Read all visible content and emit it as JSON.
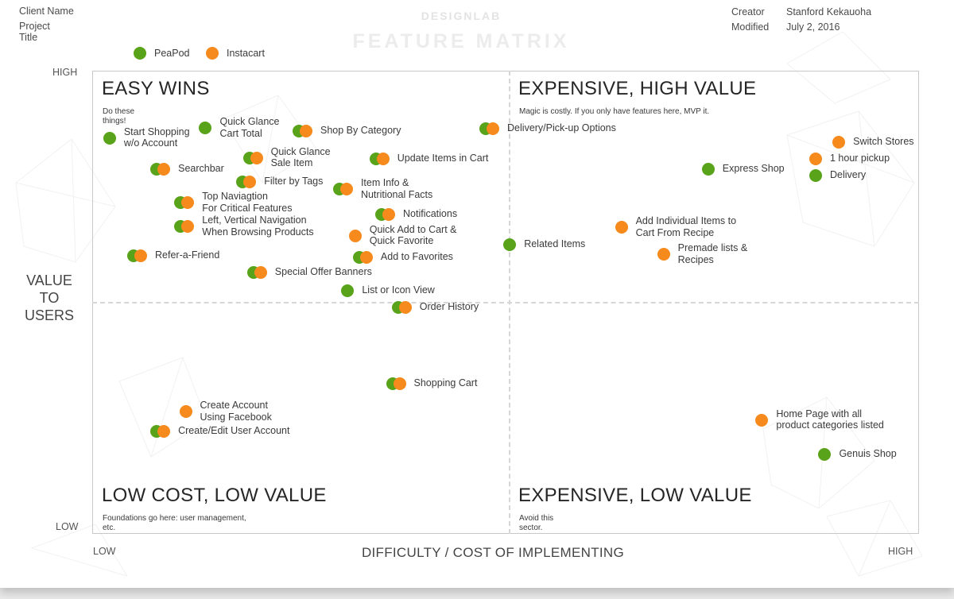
{
  "header": {
    "client_name_label": "Client Name",
    "project_title_label": "Project\nTitle",
    "brand_prefix": "DESIGN",
    "brand_suffix": "LAB",
    "matrix_title": "FEATURE MATRIX",
    "creator_label": "Creator",
    "creator_value": "Stanford Kekauoha",
    "modified_label": "Modified",
    "modified_value": "July 2, 2016"
  },
  "legend": [
    {
      "name": "PeaPod",
      "color": "#58a319"
    },
    {
      "name": "Instacart",
      "color": "#f78a1d"
    }
  ],
  "axes": {
    "y_label": "VALUE\nTO\nUSERS",
    "y_high": "HIGH",
    "y_low": "LOW",
    "x_label": "DIFFICULTY / COST OF IMPLEMENTING",
    "x_low": "LOW",
    "x_high": "HIGH"
  },
  "quadrants": {
    "tl": {
      "title": "EASY WINS",
      "subtitle": "Do these\nthings!"
    },
    "tr": {
      "title": "EXPENSIVE, HIGH VALUE",
      "subtitle": "Magic is costly. If you only have features here, MVP it."
    },
    "bl": {
      "title": "LOW COST, LOW VALUE",
      "subtitle": "Foundations go here: user management,\netc."
    },
    "br": {
      "title": "EXPENSIVE, LOW VALUE",
      "subtitle": "Avoid this\nsector."
    }
  },
  "chart_data": {
    "type": "scatter",
    "xlabel": "DIFFICULTY / COST OF IMPLEMENTING",
    "ylabel": "VALUE TO USERS",
    "x_range_labels": [
      "LOW",
      "HIGH"
    ],
    "y_range_labels": [
      "LOW",
      "HIGH"
    ],
    "legend_position": "top-left",
    "series_names": [
      "PeaPod",
      "Instacart"
    ],
    "features": [
      {
        "label": "Start Shopping\nw/o Account",
        "x": 0.021,
        "y": 0.855,
        "companies": [
          "PeaPod"
        ]
      },
      {
        "label": "Quick Glance\nCart Total",
        "x": 0.137,
        "y": 0.876,
        "companies": [
          "PeaPod"
        ]
      },
      {
        "label": "Shop By Category",
        "x": 0.25,
        "y": 0.87,
        "companies": [
          "PeaPod",
          "Instacart"
        ]
      },
      {
        "label": "Delivery/Pick-up Options",
        "x": 0.476,
        "y": 0.874,
        "companies": [
          "PeaPod",
          "Instacart"
        ]
      },
      {
        "label": "Searchbar",
        "x": 0.078,
        "y": 0.788,
        "companies": [
          "PeaPod",
          "Instacart"
        ]
      },
      {
        "label": "Quick Glance\nSale Item",
        "x": 0.19,
        "y": 0.812,
        "companies": [
          "PeaPod",
          "Instacart"
        ]
      },
      {
        "label": "Update Items in Cart",
        "x": 0.343,
        "y": 0.81,
        "companies": [
          "PeaPod",
          "Instacart"
        ]
      },
      {
        "label": "Filter by Tags",
        "x": 0.182,
        "y": 0.76,
        "companies": [
          "PeaPod",
          "Instacart"
        ]
      },
      {
        "label": "Item Info &\nNutritional Facts",
        "x": 0.299,
        "y": 0.744,
        "companies": [
          "PeaPod",
          "Instacart"
        ]
      },
      {
        "label": "Top Naviagtion\nFor Critical Features",
        "x": 0.107,
        "y": 0.715,
        "companies": [
          "PeaPod",
          "Instacart"
        ]
      },
      {
        "label": "Notifications",
        "x": 0.35,
        "y": 0.69,
        "companies": [
          "PeaPod",
          "Instacart"
        ]
      },
      {
        "label": "Left, Vertical Navigation\nWhen Browsing Products",
        "x": 0.107,
        "y": 0.663,
        "companies": [
          "PeaPod",
          "Instacart"
        ]
      },
      {
        "label": "Quick Add to Cart &\nQuick Favorite",
        "x": 0.318,
        "y": 0.644,
        "companies": [
          "Instacart"
        ]
      },
      {
        "label": "Refer-a-Friend",
        "x": 0.05,
        "y": 0.6,
        "companies": [
          "PeaPod",
          "Instacart"
        ]
      },
      {
        "label": "Add to Favorites",
        "x": 0.323,
        "y": 0.597,
        "companies": [
          "PeaPod",
          "Instacart"
        ]
      },
      {
        "label": "Special Offer Banners",
        "x": 0.195,
        "y": 0.564,
        "companies": [
          "PeaPod",
          "Instacart"
        ]
      },
      {
        "label": "List or Icon View",
        "x": 0.309,
        "y": 0.525,
        "companies": [
          "PeaPod"
        ]
      },
      {
        "label": "Order History",
        "x": 0.37,
        "y": 0.488,
        "companies": [
          "PeaPod",
          "Instacart"
        ]
      },
      {
        "label": "Shopping Cart",
        "x": 0.363,
        "y": 0.325,
        "companies": [
          "PeaPod",
          "Instacart"
        ]
      },
      {
        "label": "Create Account\nUsing Facebook",
        "x": 0.113,
        "y": 0.264,
        "companies": [
          "Instacart"
        ]
      },
      {
        "label": "Create/Edit User Account",
        "x": 0.078,
        "y": 0.222,
        "companies": [
          "PeaPod",
          "Instacart"
        ]
      },
      {
        "label": "Related Items",
        "x": 0.505,
        "y": 0.625,
        "companies": [
          "PeaPod"
        ]
      },
      {
        "label": "Switch Stores",
        "x": 0.903,
        "y": 0.846,
        "companies": [
          "Instacart"
        ]
      },
      {
        "label": "1 hour pickup",
        "x": 0.875,
        "y": 0.81,
        "companies": [
          "Instacart"
        ]
      },
      {
        "label": "Express Shop",
        "x": 0.745,
        "y": 0.788,
        "companies": [
          "PeaPod"
        ]
      },
      {
        "label": "Delivery",
        "x": 0.875,
        "y": 0.773,
        "companies": [
          "PeaPod"
        ]
      },
      {
        "label": "Add Individual Items to\nCart From Recipe",
        "x": 0.64,
        "y": 0.662,
        "companies": [
          "Instacart"
        ]
      },
      {
        "label": "Premade lists &\nRecipes",
        "x": 0.691,
        "y": 0.603,
        "companies": [
          "Instacart"
        ]
      },
      {
        "label": "Home Page with all\nproduct categories listed",
        "x": 0.81,
        "y": 0.246,
        "companies": [
          "Instacart"
        ]
      },
      {
        "label": "Genuis Shop",
        "x": 0.886,
        "y": 0.172,
        "companies": [
          "PeaPod"
        ]
      }
    ]
  }
}
